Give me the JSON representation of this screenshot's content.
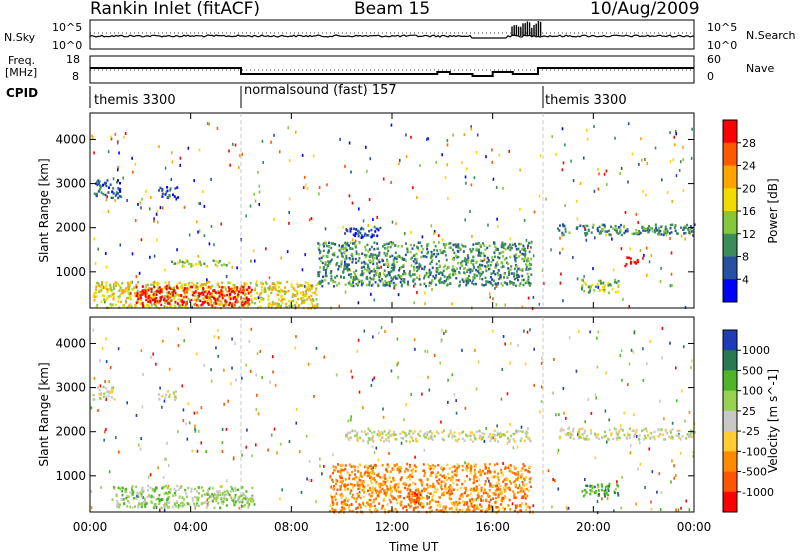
{
  "header": {
    "station": "Rankin Inlet (fitACF)",
    "beam": "Beam 15",
    "date": "10/Aug/2009"
  },
  "top_panels": {
    "nsky_label": "N.Sky",
    "nsky_ticks": [
      "10^5",
      "10^0"
    ],
    "nsearch_label": "N.Search",
    "nsearch_ticks": [
      "10^5",
      "10^0"
    ],
    "freq_label_1": "Freq.",
    "freq_label_2": "[MHz]",
    "freq_ticks": [
      "18",
      "8"
    ],
    "nave_label": "Nave",
    "nave_ticks": [
      "60",
      "0"
    ],
    "cpid_label": "CPID"
  },
  "cpid_segments": [
    {
      "label": "themis 3300",
      "start": 0.0,
      "end": 6.0
    },
    {
      "label": "normalsound (fast) 157",
      "start": 6.0,
      "end": 18.0
    },
    {
      "label": "themis 3300",
      "start": 18.0,
      "end": 24.0
    }
  ],
  "chart_data": [
    {
      "type": "heatmap",
      "name": "power",
      "ylabel": "Slant Range [km]",
      "xlabel": "Time UT",
      "xlim": [
        0,
        24
      ],
      "ylim": [
        180,
        4600
      ],
      "x_ticks": [
        "00:00",
        "04:00",
        "08:00",
        "12:00",
        "16:00",
        "20:00",
        "00:00"
      ],
      "y_ticks": [
        "1000",
        "2000",
        "3000",
        "4000"
      ],
      "colorbar": {
        "label": "Power [dB]",
        "ticks": [
          "28",
          "24",
          "20",
          "16",
          "12",
          "8",
          "4"
        ],
        "colors": [
          "#ff0000",
          "#ff5a00",
          "#ffa500",
          "#f0dc00",
          "#86c83c",
          "#3c8c5a",
          "#2850a0",
          "#0000ff"
        ]
      },
      "regions": [
        {
          "t0": 0.1,
          "t1": 9.0,
          "r0": 200,
          "r1": 800,
          "level": 3
        },
        {
          "t0": 1.8,
          "t1": 6.4,
          "r0": 250,
          "r1": 700,
          "level": 0
        },
        {
          "t0": 0.1,
          "t1": 1.2,
          "r0": 2700,
          "r1": 3100,
          "level": 6
        },
        {
          "t0": 2.7,
          "t1": 3.5,
          "r0": 2700,
          "r1": 2950,
          "level": 6
        },
        {
          "t0": 3.2,
          "t1": 5.5,
          "r0": 1150,
          "r1": 1300,
          "level": 4
        },
        {
          "t0": 9.0,
          "t1": 17.5,
          "r0": 700,
          "r1": 1700,
          "level": 5
        },
        {
          "t0": 10.0,
          "t1": 11.5,
          "r0": 1800,
          "r1": 2050,
          "level": 6
        },
        {
          "t0": 18.5,
          "t1": 24.0,
          "r0": 1850,
          "r1": 2100,
          "level": 5
        },
        {
          "t0": 19.5,
          "t1": 21.0,
          "r0": 550,
          "r1": 850,
          "level": 4
        },
        {
          "t0": 21.2,
          "t1": 21.8,
          "r0": 1150,
          "r1": 1350,
          "level": 0
        }
      ]
    },
    {
      "type": "heatmap",
      "name": "velocity",
      "ylabel": "Slant Range [km]",
      "xlabel": "Time UT",
      "xlim": [
        0,
        24
      ],
      "ylim": [
        180,
        4600
      ],
      "x_ticks": [
        "00:00",
        "04:00",
        "08:00",
        "12:00",
        "16:00",
        "20:00",
        "00:00"
      ],
      "y_ticks": [
        "1000",
        "2000",
        "3000",
        "4000"
      ],
      "colorbar": {
        "label": "Velocity [m s^-1]",
        "ticks": [
          "1000",
          "500",
          "100",
          "25",
          "-25",
          "-100",
          "-500",
          "-1000"
        ],
        "colors": [
          "#1f3cb4",
          "#287850",
          "#50b428",
          "#96d250",
          "#c8c8c8",
          "#ffcc33",
          "#ff8c00",
          "#ff5500",
          "#ff0000"
        ]
      },
      "regions": [
        {
          "t0": 0.8,
          "t1": 6.5,
          "r0": 300,
          "r1": 800,
          "level": 3
        },
        {
          "t0": 0.1,
          "t1": 1.0,
          "r0": 2750,
          "r1": 3050,
          "level": 4
        },
        {
          "t0": 2.7,
          "t1": 3.4,
          "r0": 2750,
          "r1": 2950,
          "level": 4
        },
        {
          "t0": 9.5,
          "t1": 17.5,
          "r0": 200,
          "r1": 1300,
          "level": 6
        },
        {
          "t0": 12.5,
          "t1": 13.2,
          "r0": 300,
          "r1": 700,
          "level": 7
        },
        {
          "t0": 10.0,
          "t1": 17.5,
          "r0": 1800,
          "r1": 2050,
          "level": 4
        },
        {
          "t0": 18.5,
          "t1": 24.0,
          "r0": 1850,
          "r1": 2100,
          "level": 4
        },
        {
          "t0": 19.5,
          "t1": 21.0,
          "r0": 550,
          "r1": 850,
          "level": 2
        }
      ]
    }
  ]
}
